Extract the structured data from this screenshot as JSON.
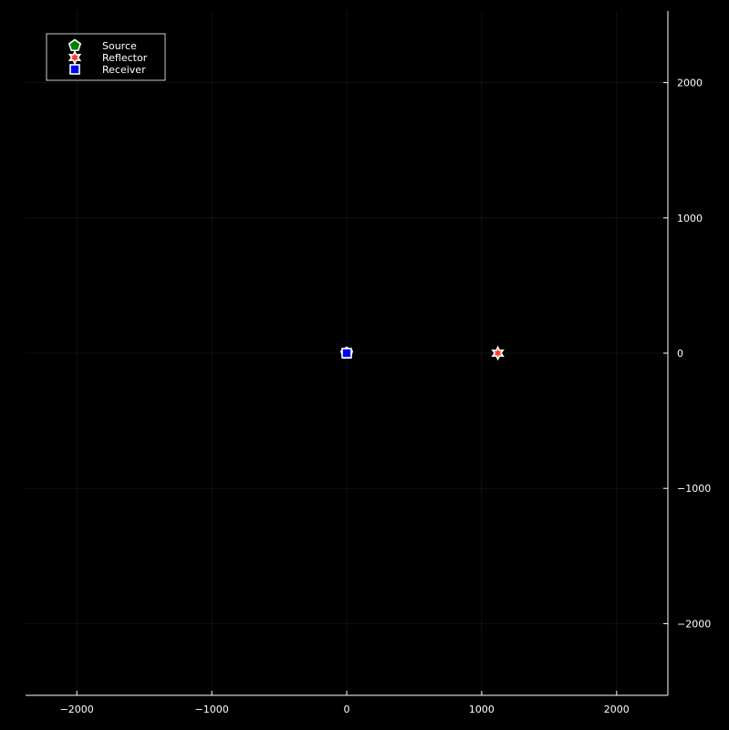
{
  "chart_data": {
    "type": "scatter",
    "title": "",
    "xlabel": "",
    "ylabel": "",
    "xlim": [
      -2380,
      2380
    ],
    "ylim": [
      -2530,
      2530
    ],
    "x_ticks": [
      -2000,
      -1000,
      0,
      1000,
      2000
    ],
    "y_ticks": [
      -2000,
      -1000,
      0,
      1000,
      2000
    ],
    "x_tick_labels": [
      "−2000",
      "−1000",
      "0",
      "1000",
      "2000"
    ],
    "y_tick_labels": [
      "−2000",
      "−1000",
      "0",
      "1000",
      "2000"
    ],
    "grid": true,
    "legend_position": "top-left",
    "background": "#000000",
    "axis_color": "#ffffff",
    "y_axis_side": "right",
    "series": [
      {
        "name": "Source",
        "marker": "pentagon",
        "color": "#008000",
        "x": [
          0
        ],
        "y": [
          0
        ]
      },
      {
        "name": "Reflector",
        "marker": "star",
        "color": "#ff3b2f",
        "x": [
          1120
        ],
        "y": [
          0
        ]
      },
      {
        "name": "Receiver",
        "marker": "square",
        "color": "#0000ff",
        "x": [
          0
        ],
        "y": [
          0
        ]
      }
    ]
  }
}
